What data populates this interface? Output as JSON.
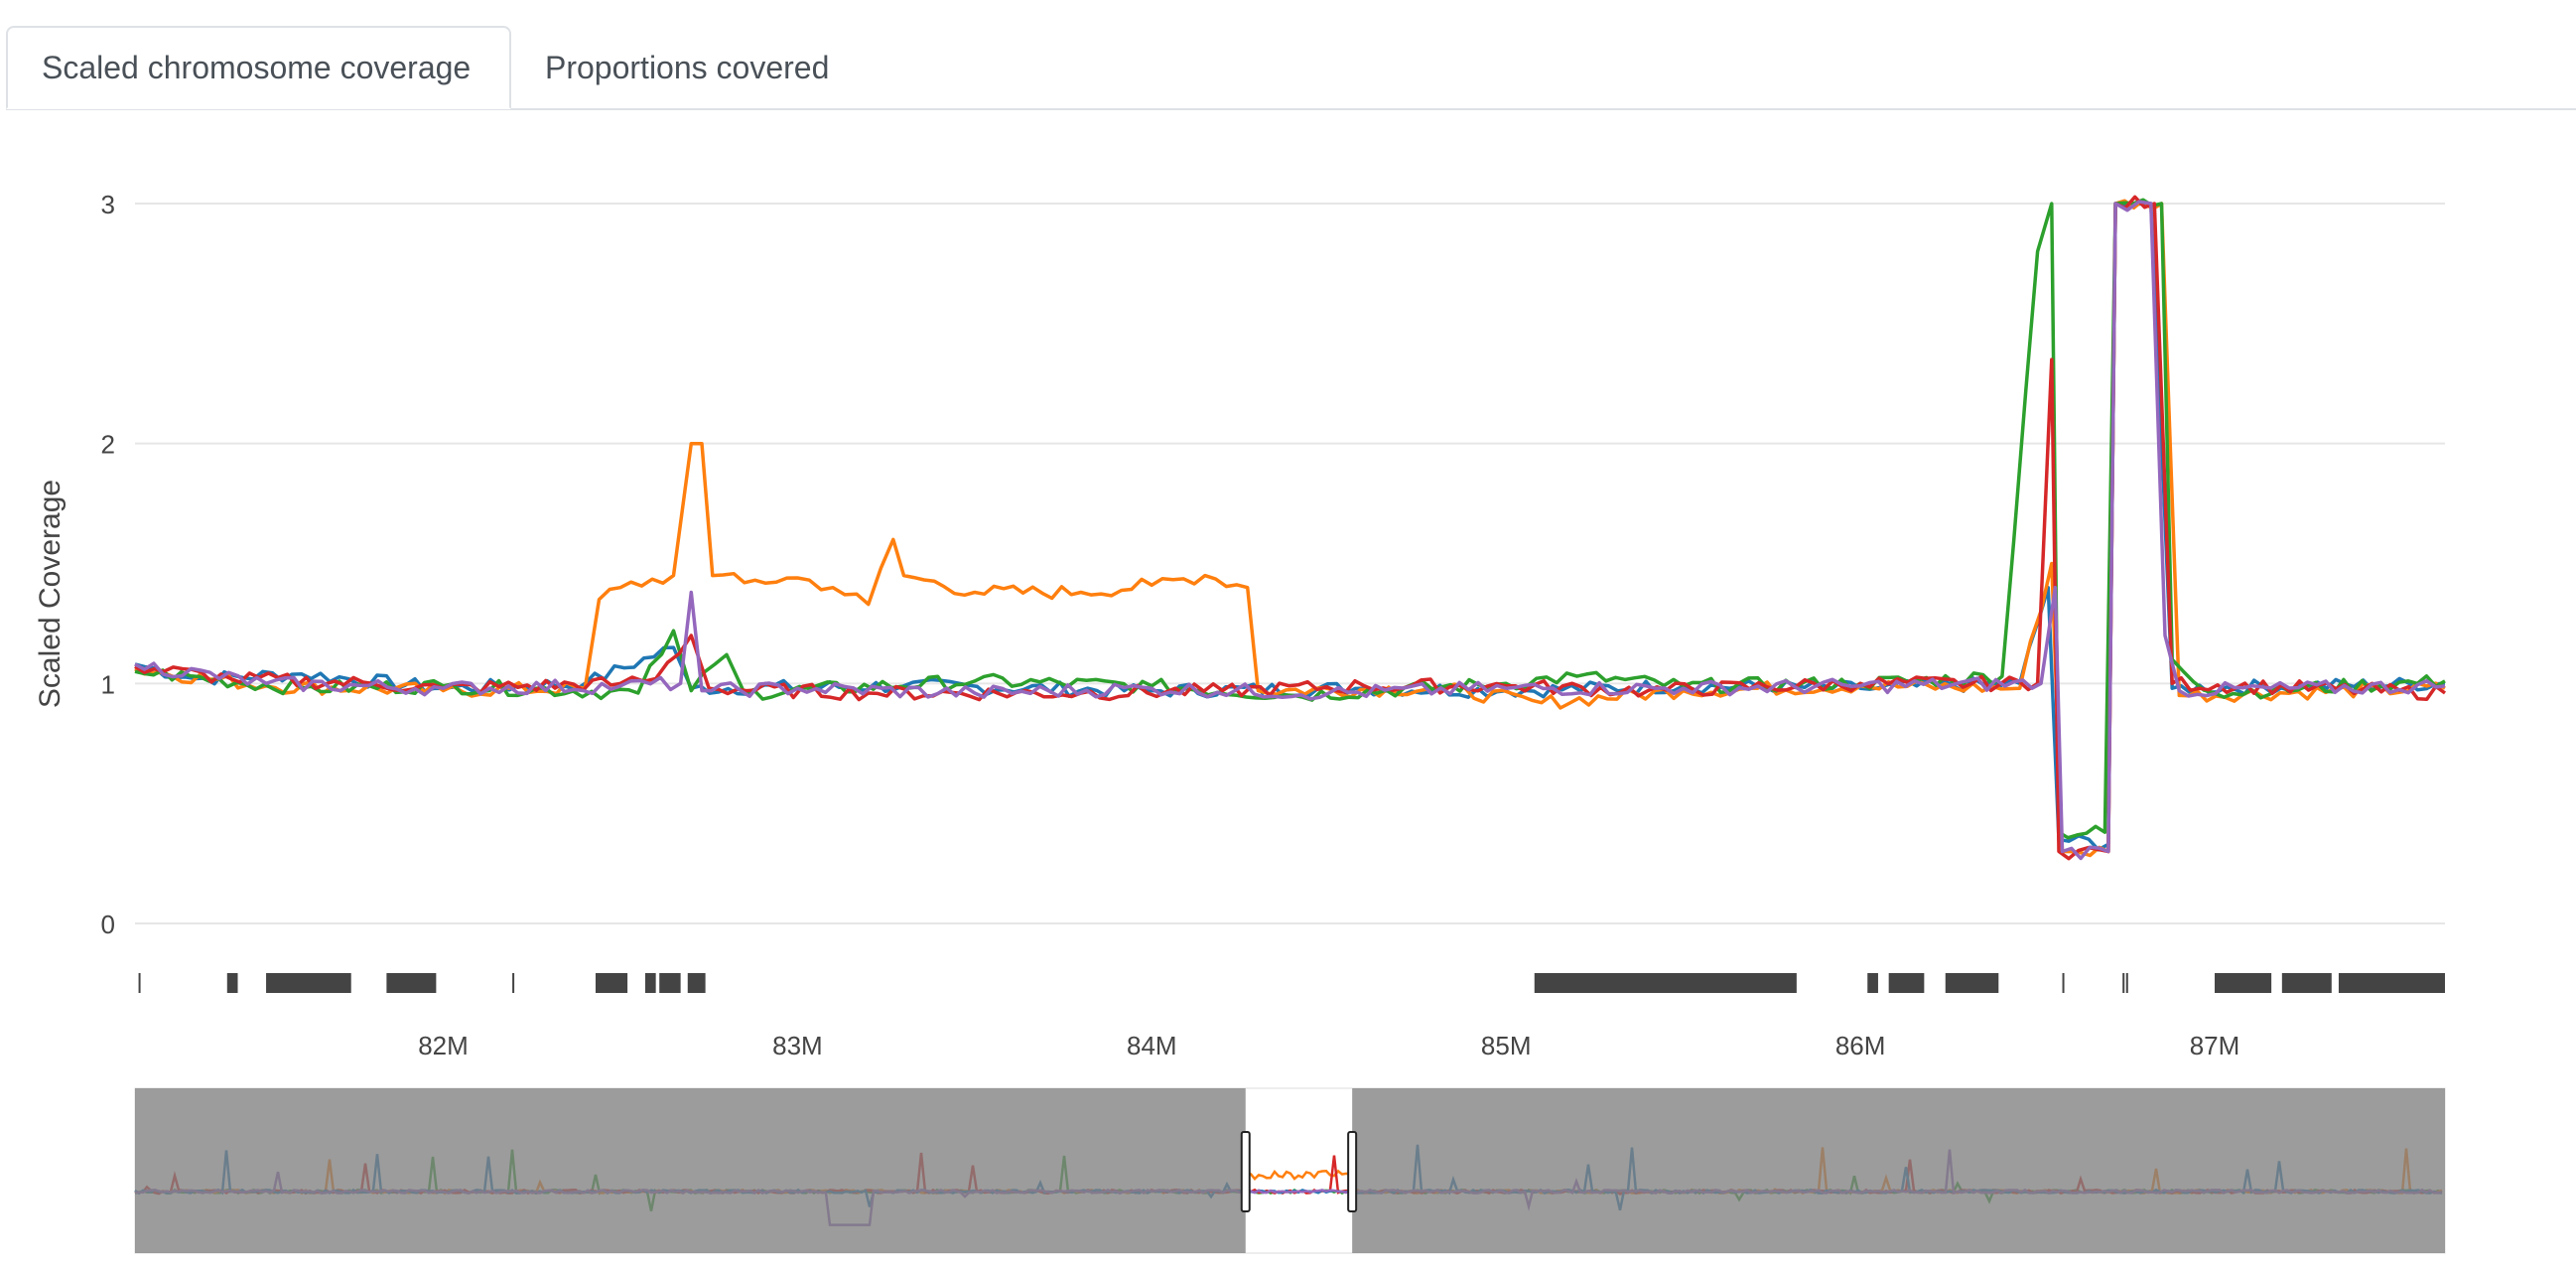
{
  "tabs": [
    {
      "label": "Scaled chromosome coverage",
      "active": true
    },
    {
      "label": "Proportions covered",
      "active": false
    }
  ],
  "chart_data": {
    "type": "line",
    "ylabel": "Scaled Coverage",
    "ylim": [
      0,
      3
    ],
    "yticks": [
      0,
      1,
      2,
      3
    ],
    "xlim": [
      81130000,
      87650000
    ],
    "xticks": [
      82000000,
      83000000,
      84000000,
      85000000,
      86000000,
      87000000
    ],
    "xticklabels": [
      "82M",
      "83M",
      "84M",
      "85M",
      "86M",
      "87M"
    ],
    "grid": true,
    "legend": "none",
    "colors": {
      "blue": "#1f77b4",
      "orange": "#ff7f0e",
      "green": "#2ca02c",
      "red": "#d62728",
      "purple": "#9467bd"
    },
    "series": [
      {
        "color": "#1f77b4",
        "points": [
          [
            81130000,
            1.08
          ],
          [
            81300000,
            1.02
          ],
          [
            81600000,
            1.04
          ],
          [
            82000000,
            0.98
          ],
          [
            82400000,
            1.0
          ],
          [
            82650000,
            1.15
          ],
          [
            82700000,
            0.98
          ],
          [
            83300000,
            0.99
          ],
          [
            84000000,
            0.97
          ],
          [
            84600000,
            0.98
          ],
          [
            85000000,
            0.97
          ],
          [
            85500000,
            0.99
          ],
          [
            86000000,
            0.98
          ],
          [
            86450000,
            1.0
          ],
          [
            86530000,
            1.4
          ],
          [
            86560000,
            0.35
          ],
          [
            86700000,
            0.33
          ],
          [
            86720000,
            3.0
          ],
          [
            86820000,
            3.0
          ],
          [
            86880000,
            0.98
          ],
          [
            87650000,
            1.0
          ]
        ]
      },
      {
        "color": "#ff7f0e",
        "points": [
          [
            81130000,
            1.06
          ],
          [
            81500000,
            0.99
          ],
          [
            82000000,
            0.97
          ],
          [
            82400000,
            0.98
          ],
          [
            82440000,
            1.35
          ],
          [
            82500000,
            1.4
          ],
          [
            82650000,
            1.45
          ],
          [
            82700000,
            2.0
          ],
          [
            82730000,
            2.0
          ],
          [
            82760000,
            1.45
          ],
          [
            82850000,
            1.42
          ],
          [
            83000000,
            1.44
          ],
          [
            83100000,
            1.4
          ],
          [
            83200000,
            1.33
          ],
          [
            83270000,
            1.6
          ],
          [
            83300000,
            1.45
          ],
          [
            83500000,
            1.38
          ],
          [
            83800000,
            1.38
          ],
          [
            84000000,
            1.41
          ],
          [
            84150000,
            1.45
          ],
          [
            84270000,
            1.4
          ],
          [
            84300000,
            0.97
          ],
          [
            84800000,
            0.98
          ],
          [
            85100000,
            0.92
          ],
          [
            85500000,
            0.97
          ],
          [
            86000000,
            0.99
          ],
          [
            86450000,
            0.98
          ],
          [
            86540000,
            1.5
          ],
          [
            86570000,
            0.3
          ],
          [
            86700000,
            0.3
          ],
          [
            86720000,
            3.0
          ],
          [
            86850000,
            3.0
          ],
          [
            86900000,
            0.95
          ],
          [
            87650000,
            0.98
          ]
        ]
      },
      {
        "color": "#2ca02c",
        "points": [
          [
            81130000,
            1.05
          ],
          [
            81600000,
            0.98
          ],
          [
            82000000,
            0.99
          ],
          [
            82550000,
            0.96
          ],
          [
            82650000,
            1.22
          ],
          [
            82700000,
            0.97
          ],
          [
            82800000,
            1.12
          ],
          [
            82850000,
            0.96
          ],
          [
            83500000,
            1.01
          ],
          [
            84000000,
            0.99
          ],
          [
            84400000,
            0.95
          ],
          [
            85000000,
            1.0
          ],
          [
            85200000,
            1.03
          ],
          [
            85500000,
            0.99
          ],
          [
            86000000,
            1.0
          ],
          [
            86400000,
            1.03
          ],
          [
            86500000,
            2.8
          ],
          [
            86540000,
            3.0
          ],
          [
            86560000,
            0.38
          ],
          [
            86690000,
            0.38
          ],
          [
            86720000,
            3.0
          ],
          [
            86850000,
            3.0
          ],
          [
            86880000,
            1.1
          ],
          [
            87000000,
            0.96
          ],
          [
            87650000,
            1.01
          ]
        ]
      },
      {
        "color": "#d62728",
        "points": [
          [
            81130000,
            1.07
          ],
          [
            81400000,
            1.02
          ],
          [
            81800000,
            1.0
          ],
          [
            82000000,
            0.98
          ],
          [
            82500000,
            1.0
          ],
          [
            82600000,
            1.02
          ],
          [
            82700000,
            1.2
          ],
          [
            82750000,
            0.98
          ],
          [
            83200000,
            0.96
          ],
          [
            83800000,
            0.96
          ],
          [
            84200000,
            0.97
          ],
          [
            84600000,
            0.99
          ],
          [
            85000000,
            0.99
          ],
          [
            85400000,
            0.97
          ],
          [
            86000000,
            1.0
          ],
          [
            86500000,
            1.0
          ],
          [
            86540000,
            2.35
          ],
          [
            86560000,
            0.3
          ],
          [
            86700000,
            0.3
          ],
          [
            86720000,
            3.0
          ],
          [
            86830000,
            3.0
          ],
          [
            86880000,
            1.0
          ],
          [
            87650000,
            0.96
          ]
        ]
      },
      {
        "color": "#9467bd",
        "points": [
          [
            81130000,
            1.08
          ],
          [
            81500000,
            1.0
          ],
          [
            82000000,
            0.98
          ],
          [
            82500000,
            0.99
          ],
          [
            82670000,
            1.0
          ],
          [
            82700000,
            1.38
          ],
          [
            82730000,
            0.97
          ],
          [
            83000000,
            0.98
          ],
          [
            83500000,
            0.96
          ],
          [
            84000000,
            0.98
          ],
          [
            84500000,
            0.96
          ],
          [
            85000000,
            0.98
          ],
          [
            85500000,
            0.98
          ],
          [
            86000000,
            0.99
          ],
          [
            86510000,
            1.0
          ],
          [
            86550000,
            1.4
          ],
          [
            86570000,
            0.3
          ],
          [
            86700000,
            0.3
          ],
          [
            86720000,
            3.0
          ],
          [
            86820000,
            3.0
          ],
          [
            86860000,
            1.2
          ],
          [
            86900000,
            0.97
          ],
          [
            87650000,
            0.99
          ]
        ]
      }
    ],
    "annotation_blocks": [
      [
        81140000,
        81145000
      ],
      [
        81390000,
        81420000
      ],
      [
        81500000,
        81740000
      ],
      [
        81840000,
        81980000
      ],
      [
        82195000,
        82200000
      ],
      [
        82430000,
        82520000
      ],
      [
        82570000,
        82600000
      ],
      [
        82610000,
        82670000
      ],
      [
        82690000,
        82740000
      ],
      [
        85080000,
        85820000
      ],
      [
        86020000,
        86050000
      ],
      [
        86080000,
        86180000
      ],
      [
        86240000,
        86390000
      ],
      [
        86570000,
        86575000
      ],
      [
        86740000,
        86745000
      ],
      [
        86750000,
        86755000
      ],
      [
        87000000,
        87160000
      ],
      [
        87190000,
        87330000
      ],
      [
        87350000,
        87650000
      ]
    ],
    "overview": {
      "xlim": [
        75000000,
        101000000
      ],
      "window": [
        87500000,
        88700000
      ],
      "ylim": [
        0,
        3
      ]
    }
  }
}
